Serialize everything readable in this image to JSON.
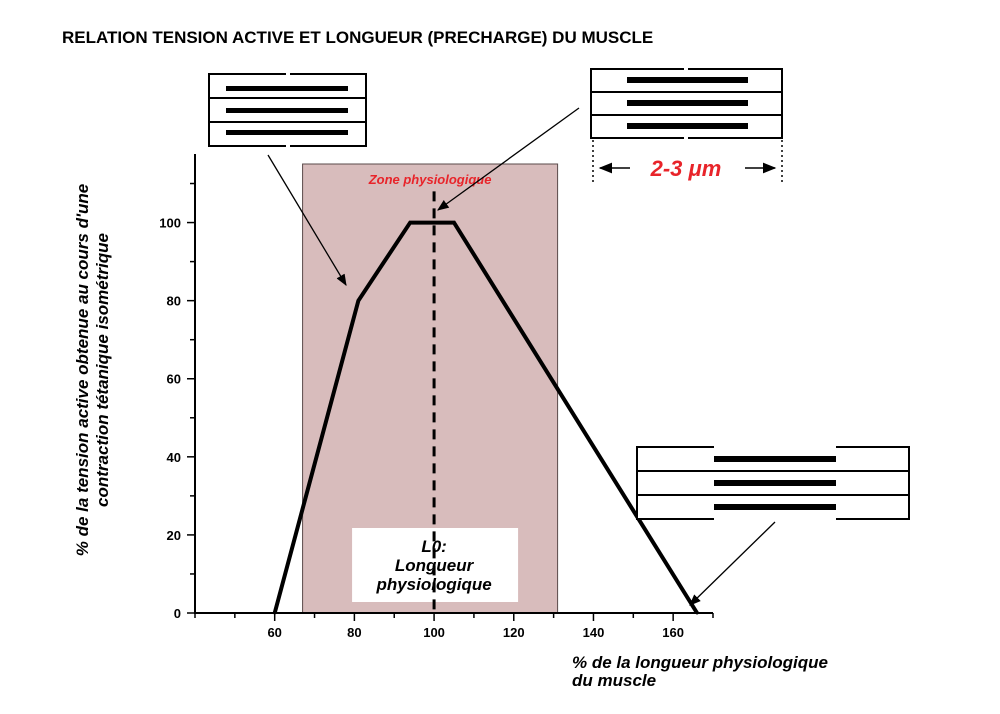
{
  "colors": {
    "zone_fill": "#d8bcbc",
    "zone_border": "#5a4a4a",
    "highlight_red": "#e8242a",
    "line": "#000000"
  },
  "chart_data": {
    "type": "line",
    "title": "RELATION  TENSION ACTIVE ET LONGUEUR (PRECHARGE) DU MUSCLE",
    "xlabel": [
      "% de la longueur physiologique",
      "du muscle"
    ],
    "ylabel": [
      "% de la tension active  obtenue au cours d'une",
      "contraction tétanique isométrique"
    ],
    "xlim": [
      40,
      170
    ],
    "ylim": [
      0,
      115
    ],
    "x_ticks": [
      60,
      80,
      100,
      120,
      140,
      160
    ],
    "y_ticks": [
      0,
      20,
      40,
      60,
      80,
      100
    ],
    "series": [
      {
        "x": [
          60,
          81,
          94,
          105,
          166
        ],
        "y": [
          0,
          80,
          100,
          100,
          0
        ]
      }
    ],
    "reference_line": {
      "x": 100
    },
    "zone": {
      "x": [
        67,
        131
      ],
      "label": "Zone physiologique"
    },
    "l0_label": [
      "L0:",
      "Longueur",
      "physiologique"
    ],
    "sarcomere_measure": "2-3  μm"
  }
}
